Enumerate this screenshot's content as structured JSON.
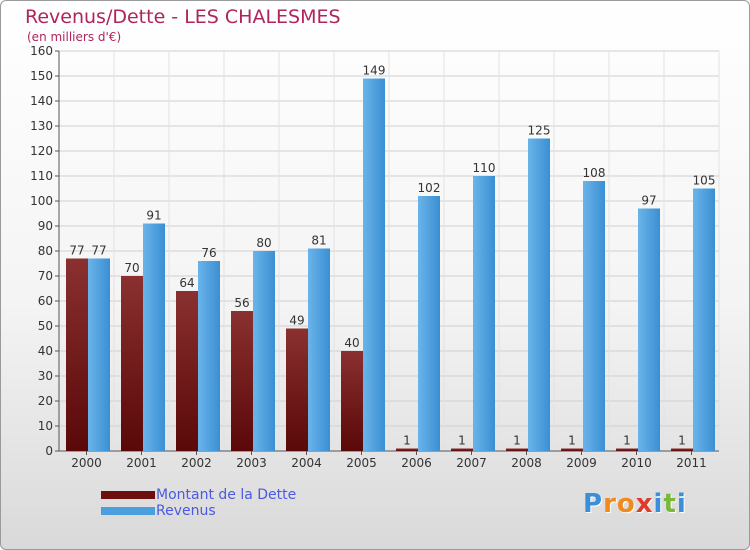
{
  "header": {
    "title": "Revenus/Dette - LES CHALESMES",
    "subtitle": "(en milliers d'€)"
  },
  "chart_data": {
    "type": "bar",
    "title": "Revenus/Dette - LES CHALESMES",
    "ylabel": "(en milliers d'€)",
    "xlabel": "",
    "categories": [
      "2000",
      "2001",
      "2002",
      "2003",
      "2004",
      "2005",
      "2006",
      "2007",
      "2008",
      "2009",
      "2010",
      "2011"
    ],
    "ylim": [
      0,
      160
    ],
    "yticks": [
      0,
      10,
      20,
      30,
      40,
      50,
      60,
      70,
      80,
      90,
      100,
      110,
      120,
      130,
      140,
      150,
      160
    ],
    "grid": true,
    "legend_placement": "bottom-left",
    "series": [
      {
        "name": "Montant de la Dette",
        "color": "#7a1f1f",
        "values": [
          77,
          70,
          64,
          56,
          49,
          40,
          1,
          1,
          1,
          1,
          1,
          1
        ]
      },
      {
        "name": "Revenus",
        "color": "#4a9fdc",
        "values": [
          77,
          91,
          76,
          80,
          81,
          149,
          102,
          110,
          125,
          108,
          97,
          105
        ]
      }
    ]
  },
  "legend": {
    "items": [
      {
        "label": "Montant de la Dette",
        "color": "#6b0f0f"
      },
      {
        "label": "Revenus",
        "color": "#4a9fdc"
      }
    ]
  },
  "logo": {
    "letters": [
      "P",
      "r",
      "o",
      "x",
      "i",
      "t",
      "i"
    ],
    "colors": [
      "#3a8fd8",
      "#f08a1c",
      "#f08a1c",
      "#e03a2a",
      "#3a8fd8",
      "#7ab83a",
      "#3a8fd8"
    ]
  }
}
